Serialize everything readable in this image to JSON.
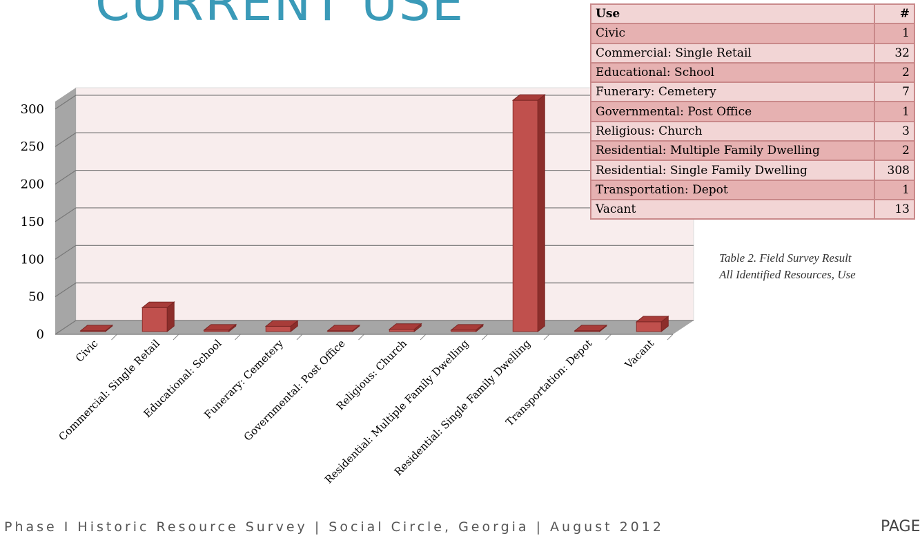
{
  "title": "CURRENT USE",
  "chart_data": {
    "type": "bar",
    "categories": [
      "Civic",
      "Commercial: Single Retail",
      "Educational: School",
      "Funerary: Cemetery",
      "Governmental: Post Office",
      "Religious: Church",
      "Residential: Multiple Family Dwelling",
      "Residential: Single Family Dwelling",
      "Transportation: Depot",
      "Vacant"
    ],
    "values": [
      1,
      32,
      2,
      7,
      1,
      3,
      2,
      308,
      1,
      13
    ],
    "color": "#c0504d",
    "ylim": [
      0,
      310
    ],
    "yticks": [
      0,
      50,
      100,
      150,
      200,
      250,
      300
    ],
    "grid": true
  },
  "table": {
    "header": [
      "Use",
      "#"
    ]
  },
  "caption": [
    "Table 2.  Field Survey Result",
    "All Identified Resources, Use"
  ],
  "footer": {
    "text": "Phase I Historic Resource Survey | Social Circle, Georgia | August 2012",
    "page": "PAGE"
  }
}
